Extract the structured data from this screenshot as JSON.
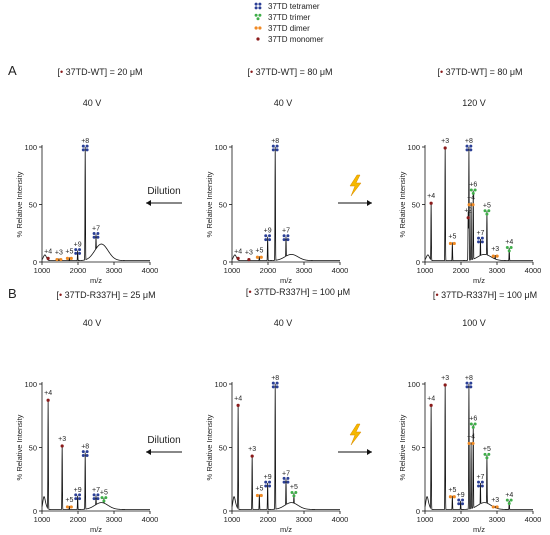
{
  "legend": {
    "items": [
      {
        "label": "37TD tetramer",
        "icon": "tetramer-icon",
        "color": "#2b3f95"
      },
      {
        "label": "37TD trimer",
        "icon": "trimer-icon",
        "color": "#3fae49"
      },
      {
        "label": "37TD dimer",
        "icon": "dimer-icon",
        "color": "#f08a24"
      },
      {
        "label": "37TD monomer",
        "icon": "monomer-icon",
        "color": "#8b1a1a"
      }
    ]
  },
  "rows": [
    {
      "label": "A",
      "dilution_label": "Dilution",
      "activation_icon": "lightning-icon"
    },
    {
      "label": "B",
      "dilution_label": "Dilution",
      "activation_icon": "lightning-icon"
    }
  ],
  "colors": {
    "monomer": "#8b1a1a",
    "dimer": "#f08a24",
    "trimer": "#3fae49",
    "tetramer": "#2b3f95",
    "bolt": "#f5b800",
    "trace": "#111111"
  },
  "chart_data": [
    {
      "id": "A1",
      "type": "line",
      "header_pre": "[",
      "header_post": "37TD-WT] = 20 μM",
      "voltage": "40 V",
      "xlabel": "m/z",
      "ylabel": "% Relative Intensity",
      "xlim": [
        1000,
        4000
      ],
      "ylim": [
        0,
        100
      ],
      "xticks": [
        1000,
        2000,
        3000,
        4000
      ],
      "yticks": [
        0,
        50,
        100
      ],
      "peaks": [
        {
          "x": 1170,
          "y": 4,
          "label": "+4",
          "species": "monomer"
        },
        {
          "x": 1470,
          "y": 3,
          "label": "+3",
          "species": "dimer"
        },
        {
          "x": 1760,
          "y": 4,
          "label": "+5",
          "species": "dimer"
        },
        {
          "x": 1990,
          "y": 10,
          "label": "+9",
          "species": "tetramer"
        },
        {
          "x": 2200,
          "y": 100,
          "label": "+8",
          "species": "tetramer"
        },
        {
          "x": 2500,
          "y": 24,
          "label": "+7",
          "species": "tetramer"
        }
      ]
    },
    {
      "id": "A2",
      "type": "line",
      "header_pre": "[",
      "header_post": "37TD-WT] = 80 μM",
      "voltage": "40 V",
      "xlabel": "m/z",
      "ylabel": "% Relative Intensity",
      "xlim": [
        1000,
        4000
      ],
      "ylim": [
        0,
        100
      ],
      "xticks": [
        1000,
        2000,
        3000,
        4000
      ],
      "yticks": [
        0,
        50,
        100
      ],
      "peaks": [
        {
          "x": 1170,
          "y": 4,
          "label": "+4",
          "species": "monomer"
        },
        {
          "x": 1470,
          "y": 3,
          "label": "+3",
          "species": "monomer"
        },
        {
          "x": 1760,
          "y": 5,
          "label": "+5",
          "species": "dimer"
        },
        {
          "x": 1990,
          "y": 22,
          "label": "+9",
          "species": "tetramer"
        },
        {
          "x": 2200,
          "y": 100,
          "label": "+8",
          "species": "tetramer"
        },
        {
          "x": 2500,
          "y": 22,
          "label": "+7",
          "species": "tetramer"
        }
      ]
    },
    {
      "id": "A3",
      "type": "line",
      "header_pre": "[",
      "header_post": "37TD-WT] = 80 μM",
      "voltage": "120 V",
      "xlabel": "m/z",
      "ylabel": "% Relative Intensity",
      "xlim": [
        1000,
        4000
      ],
      "ylim": [
        0,
        100
      ],
      "xticks": [
        1000,
        2000,
        3000,
        4000
      ],
      "yticks": [
        0,
        50,
        100
      ],
      "peaks": [
        {
          "x": 1170,
          "y": 52,
          "label": "+4",
          "species": "monomer"
        },
        {
          "x": 1560,
          "y": 100,
          "label": "+3",
          "species": "monomer"
        },
        {
          "x": 1760,
          "y": 17,
          "label": "+5",
          "species": "dimer"
        },
        {
          "x": 2200,
          "y": 44,
          "label": "+2",
          "species": "monomer"
        },
        {
          "x": 2220,
          "y": 100,
          "label": "+8",
          "species": "tetramer"
        },
        {
          "x": 2340,
          "y": 62,
          "label": "+6",
          "species": "trimer"
        },
        {
          "x": 2280,
          "y": 52,
          "label": "+4",
          "species": "dimer"
        },
        {
          "x": 2540,
          "y": 20,
          "label": "+7",
          "species": "tetramer"
        },
        {
          "x": 2720,
          "y": 44,
          "label": "+5",
          "species": "trimer"
        },
        {
          "x": 2950,
          "y": 6,
          "label": "+3",
          "species": "dimer"
        },
        {
          "x": 3340,
          "y": 12,
          "label": "+4",
          "species": "trimer"
        }
      ]
    },
    {
      "id": "B1",
      "type": "line",
      "header_pre": "[",
      "header_post": "37TD-R337H] = 25 μM",
      "voltage": "40 V",
      "xlabel": "m/z",
      "ylabel": "% Relative Intensity",
      "xlim": [
        1000,
        4000
      ],
      "ylim": [
        0,
        100
      ],
      "xticks": [
        1000,
        2000,
        3000,
        4000
      ],
      "yticks": [
        0,
        50,
        100
      ],
      "peaks": [
        {
          "x": 1170,
          "y": 88,
          "label": "+4",
          "species": "monomer"
        },
        {
          "x": 1560,
          "y": 52,
          "label": "+3",
          "species": "monomer"
        },
        {
          "x": 1760,
          "y": 4,
          "label": "+5",
          "species": "dimer"
        },
        {
          "x": 1990,
          "y": 12,
          "label": "+9",
          "species": "tetramer"
        },
        {
          "x": 2200,
          "y": 46,
          "label": "+8",
          "species": "tetramer"
        },
        {
          "x": 2500,
          "y": 12,
          "label": "+7",
          "species": "tetramer"
        },
        {
          "x": 2720,
          "y": 10,
          "label": "+5",
          "species": "trimer"
        }
      ]
    },
    {
      "id": "B2",
      "type": "line",
      "header_pre": "[",
      "header_post": "37TD-R337H] = 100 μM",
      "voltage": "40 V",
      "xlabel": "m/z",
      "ylabel": "% Relative Intensity",
      "xlim": [
        1000,
        4000
      ],
      "ylim": [
        0,
        100
      ],
      "xticks": [
        1000,
        2000,
        3000,
        4000
      ],
      "yticks": [
        0,
        50,
        100
      ],
      "peaks": [
        {
          "x": 1170,
          "y": 84,
          "label": "+4",
          "species": "monomer"
        },
        {
          "x": 1560,
          "y": 44,
          "label": "+3",
          "species": "monomer"
        },
        {
          "x": 1760,
          "y": 13,
          "label": "+5",
          "species": "dimer"
        },
        {
          "x": 1990,
          "y": 22,
          "label": "+9",
          "species": "tetramer"
        },
        {
          "x": 2200,
          "y": 100,
          "label": "+8",
          "species": "tetramer"
        },
        {
          "x": 2500,
          "y": 25,
          "label": "+7",
          "species": "tetramer"
        },
        {
          "x": 2720,
          "y": 14,
          "label": "+5",
          "species": "trimer"
        }
      ]
    },
    {
      "id": "B3",
      "type": "line",
      "header_pre": "[",
      "header_post": "37TD-R337H] = 100 μM",
      "voltage": "100 V",
      "xlabel": "m/z",
      "ylabel": "% Relative Intensity",
      "xlim": [
        1000,
        4000
      ],
      "ylim": [
        0,
        100
      ],
      "xticks": [
        1000,
        2000,
        3000,
        4000
      ],
      "yticks": [
        0,
        50,
        100
      ],
      "peaks": [
        {
          "x": 1170,
          "y": 84,
          "label": "+4",
          "species": "monomer"
        },
        {
          "x": 1560,
          "y": 100,
          "label": "+3",
          "species": "monomer"
        },
        {
          "x": 1760,
          "y": 12,
          "label": "+5",
          "species": "dimer"
        },
        {
          "x": 1990,
          "y": 8,
          "label": "+9",
          "species": "tetramer"
        },
        {
          "x": 2220,
          "y": 100,
          "label": "+8",
          "species": "tetramer"
        },
        {
          "x": 2340,
          "y": 68,
          "label": "+6",
          "species": "trimer"
        },
        {
          "x": 2280,
          "y": 54,
          "label": "+4",
          "species": "dimer"
        },
        {
          "x": 2540,
          "y": 22,
          "label": "+7",
          "species": "tetramer"
        },
        {
          "x": 2720,
          "y": 44,
          "label": "+5",
          "species": "trimer"
        },
        {
          "x": 2950,
          "y": 4,
          "label": "+3",
          "species": "dimer"
        },
        {
          "x": 3340,
          "y": 8,
          "label": "+4",
          "species": "trimer"
        }
      ]
    }
  ]
}
